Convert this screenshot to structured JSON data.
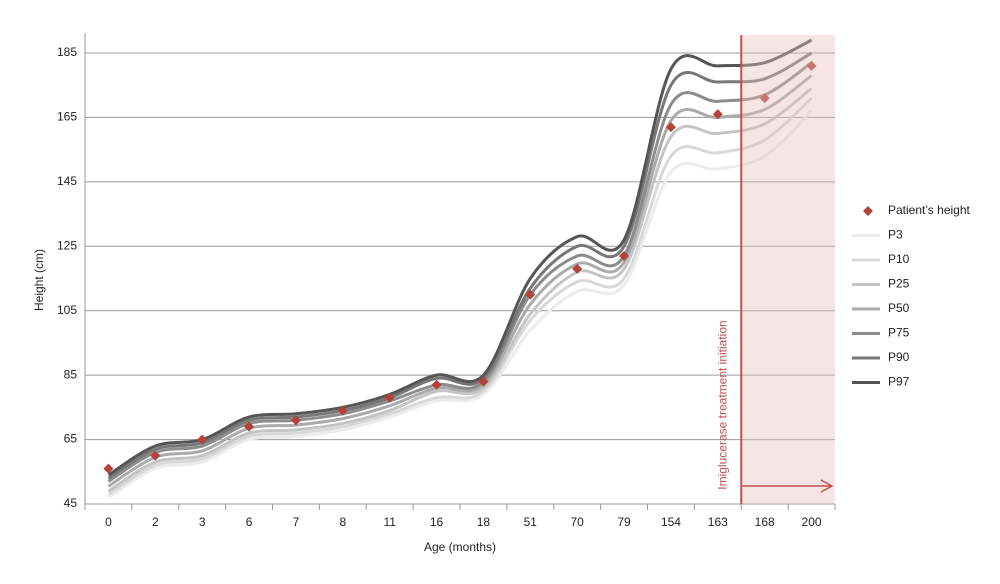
{
  "chart_data": {
    "type": "line",
    "x_label": "Age (months)",
    "y_label": "Height (cm)",
    "categories": [
      "0",
      "2",
      "3",
      "6",
      "7",
      "8",
      "11",
      "16",
      "18",
      "51",
      "70",
      "79",
      "154",
      "163",
      "168",
      "200"
    ],
    "ylim": [
      45,
      185
    ],
    "yticks": [
      45,
      65,
      85,
      105,
      125,
      145,
      165,
      185
    ],
    "grid": true,
    "annotation": "Imiglucerase treatment initiation",
    "legend": "right",
    "series": [
      {
        "name": "Patient’s height",
        "color": "#b5413d",
        "marker": "diamond",
        "values": [
          56,
          60,
          65,
          69,
          71,
          74,
          78,
          82,
          83,
          110,
          118,
          122,
          162,
          166,
          171,
          181
        ]
      },
      {
        "name": "P3",
        "color": "#ececec",
        "values": [
          47,
          56,
          58,
          65,
          66,
          68,
          72,
          77,
          79,
          99,
          111,
          113,
          148,
          149,
          153,
          167
        ]
      },
      {
        "name": "P10",
        "color": "#d8d8d8",
        "values": [
          48,
          57,
          59,
          66,
          67,
          69,
          73,
          78,
          80,
          102,
          114,
          115,
          153,
          154,
          158,
          171
        ]
      },
      {
        "name": "P25",
        "color": "#c4c4c4",
        "values": [
          49,
          58,
          60,
          67,
          68,
          70,
          74,
          80,
          81,
          104,
          117,
          118,
          159,
          160,
          163,
          174
        ]
      },
      {
        "name": "P50",
        "color": "#aaaaaa",
        "values": [
          50.5,
          59.5,
          61.5,
          68.5,
          69.5,
          71.5,
          75.5,
          81,
          82,
          107,
          119.5,
          120,
          164,
          165,
          167.5,
          178
        ]
      },
      {
        "name": "P75",
        "color": "#8c8c8c",
        "values": [
          52,
          61,
          63,
          70,
          71,
          73,
          77,
          82,
          83,
          110,
          122,
          122,
          169,
          170,
          172,
          182
        ]
      },
      {
        "name": "P90",
        "color": "#777777",
        "values": [
          53,
          62,
          64,
          71,
          72,
          74,
          78,
          84,
          84,
          112,
          125,
          125,
          175,
          176,
          177,
          185
        ]
      },
      {
        "name": "P97",
        "color": "#555555",
        "values": [
          54,
          63,
          65,
          72,
          73,
          75,
          79,
          85,
          85,
          115,
          128,
          127,
          180,
          181,
          182,
          189
        ]
      }
    ]
  }
}
